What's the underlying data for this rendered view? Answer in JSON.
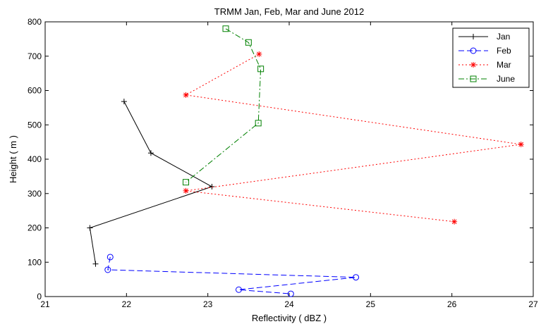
{
  "chart_data": {
    "type": "line",
    "title": "TRMM Jan, Feb, Mar and June 2012",
    "xlabel": "Reflectivity ( dBZ )",
    "ylabel": "Height ( m )",
    "xlim": [
      21,
      27
    ],
    "ylim": [
      0,
      800
    ],
    "xticks": [
      21,
      22,
      23,
      24,
      25,
      26,
      27
    ],
    "yticks": [
      0,
      100,
      200,
      300,
      400,
      500,
      600,
      700,
      800
    ],
    "grid": false,
    "legend_position": "top-right",
    "series": [
      {
        "name": "Jan",
        "color": "#000000",
        "line_style": "solid",
        "marker": "plus",
        "x": [
          21.97,
          22.3,
          23.05,
          21.55,
          21.62
        ],
        "y": [
          568,
          418,
          320,
          200,
          95
        ]
      },
      {
        "name": "Feb",
        "color": "#0000ff",
        "line_style": "dashed",
        "marker": "circle",
        "x": [
          21.8,
          21.77,
          24.82,
          23.38,
          24.02
        ],
        "y": [
          115,
          78,
          56,
          20,
          8
        ]
      },
      {
        "name": "Mar",
        "color": "#ff0000",
        "line_style": "dotted",
        "marker": "asterisk",
        "x": [
          23.63,
          22.73,
          26.85,
          22.73,
          26.03
        ],
        "y": [
          706,
          587,
          443,
          308,
          218
        ]
      },
      {
        "name": "June",
        "color": "#008000",
        "line_style": "dashdot",
        "marker": "square",
        "x": [
          23.22,
          23.5,
          23.65,
          23.62,
          22.73
        ],
        "y": [
          780,
          740,
          663,
          505,
          333
        ]
      }
    ]
  }
}
